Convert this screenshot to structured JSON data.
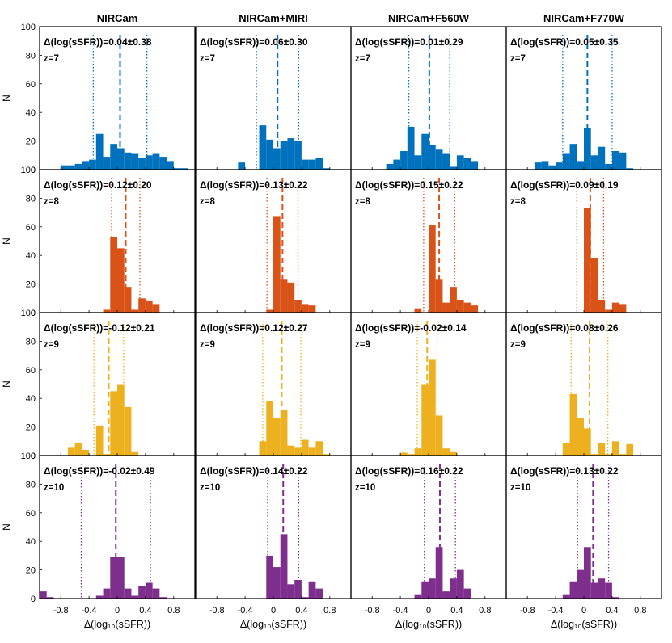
{
  "figure": {
    "xlabel": "Δ(log₁₀(sSFR))",
    "ylabel": "N",
    "ytick_labels": [
      "0",
      "20",
      "40",
      "60",
      "80",
      "100"
    ],
    "xtick_labels": [
      "-0.8",
      "-0.4",
      "0",
      "0.4",
      "0.8"
    ],
    "colors": {
      "z7": "#0072bd",
      "z8": "#d95319",
      "z9": "#edb120",
      "z10": "#7e2f8e"
    }
  },
  "chart_data": {
    "type": "histogram-grid",
    "xlim": [
      -1.1,
      1.1
    ],
    "ylim": [
      0,
      100
    ],
    "bin_width": 0.1,
    "xticks": [
      -0.8,
      -0.4,
      0,
      0.4,
      0.8
    ],
    "yticks": [
      0,
      20,
      40,
      60,
      80,
      100
    ],
    "columns": [
      "NIRCam",
      "NIRCam+MIRI",
      "NIRCam+F560W",
      "NIRCam+F770W"
    ],
    "rows": [
      {
        "z_label": "z=7",
        "color_key": "z7",
        "panels": [
          {
            "stat": "Δ(log(sSFR))=0.04±0.38",
            "mean": 0.04,
            "std": 0.38,
            "bins": [
              [
                -0.8,
                -0.7,
                3
              ],
              [
                -0.7,
                -0.6,
                3
              ],
              [
                -0.6,
                -0.5,
                4
              ],
              [
                -0.5,
                -0.4,
                6
              ],
              [
                -0.4,
                -0.3,
                7
              ],
              [
                -0.3,
                -0.2,
                25
              ],
              [
                -0.2,
                -0.1,
                9
              ],
              [
                -0.1,
                0,
                18
              ],
              [
                0,
                0.1,
                15
              ],
              [
                0.1,
                0.2,
                12
              ],
              [
                0.2,
                0.3,
                11
              ],
              [
                0.3,
                0.4,
                8
              ],
              [
                0.4,
                0.5,
                10
              ],
              [
                0.5,
                0.6,
                11
              ],
              [
                0.6,
                0.7,
                9
              ],
              [
                0.7,
                0.8,
                6
              ],
              [
                0.8,
                0.9,
                1
              ],
              [
                0.9,
                1.0,
                1
              ]
            ]
          },
          {
            "stat": "Δ(log(sSFR))=0.06±0.30",
            "mean": 0.06,
            "std": 0.3,
            "bins": [
              [
                -0.5,
                -0.4,
                5
              ],
              [
                -0.2,
                -0.1,
                31
              ],
              [
                -0.1,
                0,
                21
              ],
              [
                0,
                0.1,
                15
              ],
              [
                0.1,
                0.2,
                20
              ],
              [
                0.2,
                0.3,
                22
              ],
              [
                0.3,
                0.4,
                20
              ],
              [
                0.4,
                0.5,
                7
              ],
              [
                0.5,
                0.6,
                7
              ],
              [
                0.6,
                0.7,
                8
              ],
              [
                0.7,
                0.8,
                1
              ]
            ]
          },
          {
            "stat": "Δ(log(sSFR))=0.01±0.29",
            "mean": 0.01,
            "std": 0.29,
            "bins": [
              [
                -0.6,
                -0.5,
                4
              ],
              [
                -0.5,
                -0.4,
                7
              ],
              [
                -0.4,
                -0.3,
                13
              ],
              [
                -0.3,
                -0.2,
                30
              ],
              [
                -0.2,
                -0.1,
                10
              ],
              [
                -0.1,
                0,
                25
              ],
              [
                0,
                0.1,
                17
              ],
              [
                0.1,
                0.2,
                14
              ],
              [
                0.2,
                0.3,
                11
              ],
              [
                0.3,
                0.4,
                2
              ],
              [
                0.4,
                0.5,
                10
              ],
              [
                0.5,
                0.6,
                8
              ],
              [
                0.6,
                0.7,
                6
              ]
            ]
          },
          {
            "stat": "Δ(log(sSFR))=0.05±0.35",
            "mean": 0.05,
            "std": 0.35,
            "bins": [
              [
                -0.7,
                -0.6,
                5
              ],
              [
                -0.6,
                -0.5,
                6
              ],
              [
                -0.5,
                -0.4,
                3
              ],
              [
                -0.4,
                -0.3,
                5
              ],
              [
                -0.3,
                -0.2,
                11
              ],
              [
                -0.2,
                -0.1,
                18
              ],
              [
                -0.1,
                0,
                6
              ],
              [
                0,
                0.1,
                29
              ],
              [
                0,
                0.1,
                0
              ],
              [
                0.1,
                0.2,
                10
              ],
              [
                0.2,
                0.3,
                16
              ],
              [
                0.3,
                0.4,
                4
              ],
              [
                0.4,
                0.5,
                13
              ],
              [
                0.5,
                0.6,
                12
              ],
              [
                0.6,
                0.7,
                1
              ]
            ]
          }
        ]
      },
      {
        "z_label": "z=8",
        "color_key": "z8",
        "panels": [
          {
            "stat": "Δ(log(sSFR))=0.12±0.20",
            "mean": 0.12,
            "std": 0.2,
            "bins": [
              [
                -0.2,
                -0.1,
                2
              ],
              [
                -0.1,
                0,
                53
              ],
              [
                0,
                0.1,
                45
              ],
              [
                0.1,
                0.2,
                18
              ],
              [
                0.2,
                0.3,
                2
              ],
              [
                0.3,
                0.4,
                10
              ],
              [
                0.4,
                0.5,
                8
              ],
              [
                0.5,
                0.6,
                6
              ]
            ]
          },
          {
            "stat": "Δ(log(sSFR))=0.13±0.22",
            "mean": 0.13,
            "std": 0.22,
            "bins": [
              [
                -0.1,
                0,
                2
              ],
              [
                0,
                0.1,
                67
              ],
              [
                0.1,
                0.2,
                23
              ],
              [
                0.2,
                0.3,
                21
              ],
              [
                0.3,
                0.4,
                9
              ],
              [
                0.4,
                0.5,
                6
              ],
              [
                0.5,
                0.6,
                5
              ]
            ]
          },
          {
            "stat": "Δ(log(sSFR))=0.15±0.22",
            "mean": 0.15,
            "std": 0.22,
            "bins": [
              [
                -0.2,
                -0.1,
                3
              ],
              [
                0,
                0.1,
                61
              ],
              [
                0.1,
                0.2,
                23
              ],
              [
                0.2,
                0.3,
                7
              ],
              [
                0.3,
                0.4,
                18
              ],
              [
                0.4,
                0.5,
                9
              ],
              [
                0.5,
                0.6,
                7
              ],
              [
                0.6,
                0.7,
                5
              ]
            ]
          },
          {
            "stat": "Δ(log(sSFR))=0.09±0.19",
            "mean": 0.09,
            "std": 0.19,
            "bins": [
              [
                -0.1,
                0,
                0
              ],
              [
                0,
                0.1,
                73
              ],
              [
                0.1,
                0.2,
                38
              ],
              [
                0.2,
                0.3,
                9
              ],
              [
                0.3,
                0.4,
                2
              ],
              [
                0.4,
                0.5,
                7
              ],
              [
                0.5,
                0.6,
                6
              ]
            ]
          }
        ]
      },
      {
        "z_label": "z=9",
        "color_key": "z9",
        "panels": [
          {
            "stat": "Δ(log(sSFR))=-0.12±0.21",
            "mean": -0.12,
            "std": 0.21,
            "bins": [
              [
                -0.7,
                -0.6,
                6
              ],
              [
                -0.6,
                -0.5,
                9
              ],
              [
                -0.5,
                -0.4,
                4
              ],
              [
                -0.3,
                -0.2,
                21
              ],
              [
                -0.2,
                -0.1,
                1
              ],
              [
                -0.1,
                0,
                45
              ],
              [
                0,
                0.1,
                50
              ],
              [
                0.1,
                0.2,
                34
              ],
              [
                0.2,
                0.3,
                3
              ]
            ]
          },
          {
            "stat": "Δ(log(sSFR))=0.12±0.27",
            "mean": 0.12,
            "std": 0.27,
            "bins": [
              [
                -0.2,
                -0.1,
                10
              ],
              [
                -0.1,
                0,
                38
              ],
              [
                0,
                0.1,
                26
              ],
              [
                0.1,
                0.2,
                32
              ],
              [
                0.2,
                0.3,
                7
              ],
              [
                0.3,
                0.4,
                6
              ],
              [
                0.4,
                0.5,
                11
              ],
              [
                0.5,
                0.6,
                6
              ],
              [
                0.6,
                0.7,
                10
              ],
              [
                0.7,
                0.8,
                1
              ]
            ]
          },
          {
            "stat": "Δ(log(sSFR))=-0.02±0.14",
            "mean": -0.02,
            "std": 0.14,
            "bins": [
              [
                -0.4,
                -0.3,
                2
              ],
              [
                -0.3,
                -0.2,
                1
              ],
              [
                -0.2,
                -0.1,
                5
              ],
              [
                -0.1,
                0,
                50
              ],
              [
                0,
                0.1,
                67
              ],
              [
                0.1,
                0.2,
                28
              ],
              [
                0.2,
                0.3,
                5
              ],
              [
                0.3,
                0.4,
                3
              ]
            ]
          },
          {
            "stat": "Δ(log(sSFR))=0.08±0.26",
            "mean": 0.08,
            "std": 0.26,
            "bins": [
              [
                -0.3,
                -0.2,
                9
              ],
              [
                -0.2,
                -0.1,
                43
              ],
              [
                -0.1,
                0,
                26
              ],
              [
                0,
                0.1,
                19
              ],
              [
                0.1,
                0.2,
                1
              ],
              [
                0.2,
                0.3,
                9
              ],
              [
                0.3,
                0.4,
                1
              ],
              [
                0.4,
                0.5,
                10
              ],
              [
                0.5,
                0.6,
                1
              ],
              [
                0.6,
                0.7,
                8
              ]
            ]
          }
        ]
      },
      {
        "z_label": "z=10",
        "color_key": "z10",
        "panels": [
          {
            "stat": "Δ(log(sSFR))=-0.02±0.49",
            "mean": -0.02,
            "std": 0.49,
            "bins": [
              [
                -1.1,
                -1.0,
                5
              ],
              [
                -1.0,
                -0.9,
                1
              ],
              [
                -0.3,
                -0.2,
                2
              ],
              [
                -0.2,
                -0.1,
                7
              ],
              [
                -0.1,
                0,
                29
              ],
              [
                0,
                0.1,
                29
              ],
              [
                0.1,
                0.2,
                7
              ],
              [
                0.2,
                0.3,
                2
              ],
              [
                0.3,
                0.4,
                9
              ],
              [
                0.4,
                0.5,
                11
              ],
              [
                0.5,
                0.6,
                7
              ],
              [
                0.6,
                0.7,
                1
              ]
            ]
          },
          {
            "stat": "Δ(log(sSFR))=0.14±0.22",
            "mean": 0.14,
            "std": 0.22,
            "bins": [
              [
                -0.1,
                0,
                30
              ],
              [
                0,
                0.1,
                22
              ],
              [
                0.1,
                0.2,
                45
              ],
              [
                0.2,
                0.3,
                10
              ],
              [
                0.3,
                0.4,
                13
              ],
              [
                0.4,
                0.5,
                1
              ],
              [
                0.5,
                0.6,
                12
              ],
              [
                0.6,
                0.7,
                7
              ]
            ]
          },
          {
            "stat": "Δ(log(sSFR))=0.16±0.22",
            "mean": 0.16,
            "std": 0.22,
            "bins": [
              [
                -0.2,
                -0.1,
                3
              ],
              [
                -0.1,
                0,
                12
              ],
              [
                0,
                0.1,
                14
              ],
              [
                0.1,
                0.2,
                36
              ],
              [
                0.2,
                0.3,
                5
              ],
              [
                0.3,
                0.4,
                14
              ],
              [
                0.4,
                0.5,
                20
              ],
              [
                0.5,
                0.6,
                7
              ]
            ]
          },
          {
            "stat": "Δ(log(sSFR))=0.13±0.22",
            "mean": 0.13,
            "std": 0.22,
            "bins": [
              [
                -0.3,
                -0.2,
                3
              ],
              [
                -0.2,
                -0.1,
                12
              ],
              [
                -0.1,
                0,
                20
              ],
              [
                0,
                0.1,
                36
              ],
              [
                0.1,
                0.2,
                11
              ],
              [
                0.2,
                0.3,
                14
              ],
              [
                0.3,
                0.4,
                11
              ],
              [
                0.4,
                0.5,
                1
              ]
            ]
          }
        ]
      }
    ]
  }
}
